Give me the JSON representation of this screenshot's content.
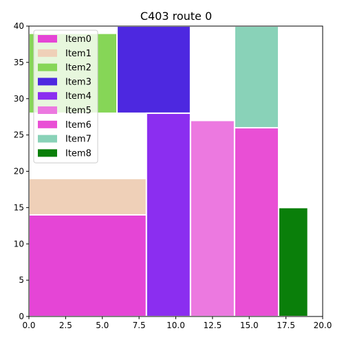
{
  "chart_data": {
    "type": "bar",
    "title": "C403 route 0",
    "xlabel": "",
    "ylabel": "",
    "xlim": [
      0,
      20
    ],
    "ylim": [
      0,
      40
    ],
    "x_ticks": [
      "0.0",
      "2.5",
      "5.0",
      "7.5",
      "10.0",
      "12.5",
      "15.0",
      "17.5",
      "20.0"
    ],
    "y_ticks": [
      "0",
      "5",
      "10",
      "15",
      "20",
      "25",
      "30",
      "35",
      "40"
    ],
    "grid": false,
    "legend_position": "top-left",
    "items": [
      {
        "name": "Item0",
        "color": "#e545d6",
        "x0": 0,
        "x1": 8,
        "y0": 0,
        "y1": 14
      },
      {
        "name": "Item1",
        "color": "#efd0b8",
        "x0": 0,
        "x1": 8,
        "y0": 14,
        "y1": 19
      },
      {
        "name": "Item2",
        "color": "#86d657",
        "x0": 0,
        "x1": 6,
        "y0": 28,
        "y1": 39
      },
      {
        "name": "Item3",
        "color": "#4d28e0",
        "x0": 6,
        "x1": 11,
        "y0": 28,
        "y1": 40
      },
      {
        "name": "Item4",
        "color": "#8b2ef0",
        "x0": 8,
        "x1": 11,
        "y0": 0,
        "y1": 28
      },
      {
        "name": "Item5",
        "color": "#ec79e0",
        "x0": 11,
        "x1": 14,
        "y0": 0,
        "y1": 27
      },
      {
        "name": "Item6",
        "color": "#e94fd5",
        "x0": 14,
        "x1": 17,
        "y0": 0,
        "y1": 26
      },
      {
        "name": "Item7",
        "color": "#89d2b8",
        "x0": 14,
        "x1": 17,
        "y0": 26,
        "y1": 40
      },
      {
        "name": "Item8",
        "color": "#0a7f0a",
        "x0": 17,
        "x1": 19,
        "y0": 0,
        "y1": 15
      }
    ]
  }
}
